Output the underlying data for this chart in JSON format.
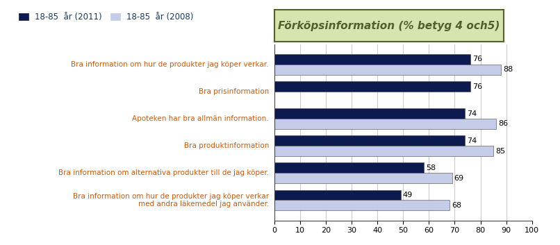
{
  "categories": [
    "Bra information om hur de produkter jag köper verkar.",
    "Bra prisinformation",
    "Apoteken har bra allmän information.",
    "Bra produktinformation",
    "Bra information om alternativa produkter till de jag köper.",
    "Bra information om hur de produkter jag köper verkar\nmed andra läkemedel jag använder."
  ],
  "values_2011": [
    76,
    76,
    74,
    74,
    58,
    49
  ],
  "values_2008": [
    88,
    null,
    86,
    85,
    69,
    68
  ],
  "color_2011": "#0d1a4f",
  "color_2008": "#c5cce8",
  "label_2011": "18-85  år (2011)",
  "label_2008": "18-85  år (2008)",
  "title": "Förköpsinformation (% betyg 4 och5)",
  "title_color": "#4f6228",
  "title_bg": "#d6e4b0",
  "label_color": "#c55a11",
  "legend_color": "#17375e",
  "xlim": [
    0,
    100
  ],
  "xticks": [
    0,
    10,
    20,
    30,
    40,
    50,
    60,
    70,
    80,
    90,
    100
  ],
  "bar_height": 0.38,
  "figsize": [
    8.06,
    3.53
  ],
  "dpi": 100
}
